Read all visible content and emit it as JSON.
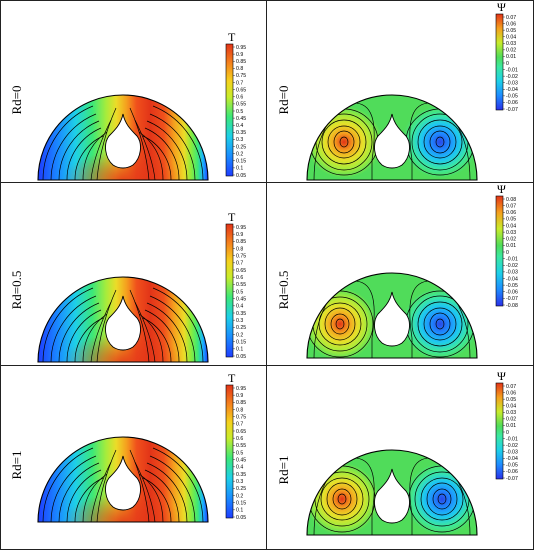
{
  "colors": {
    "temperature": [
      "#1e3cff",
      "#1a78ff",
      "#1ab4ff",
      "#1ee0d0",
      "#3ce878",
      "#8cec3c",
      "#d2ec2a",
      "#f5d21e",
      "#f5a01e",
      "#f56a1e",
      "#e23418"
    ],
    "stream_negative": [
      "#2a48e8",
      "#1e8cff",
      "#1ec8f0",
      "#3ce8a0"
    ],
    "stream_positive": [
      "#a6ec3c",
      "#e6e02a",
      "#f5a01e",
      "#e24a1c"
    ],
    "background_green": "#50dc5a"
  },
  "panels": [
    {
      "row_label": "Rd=0",
      "temperature": {
        "title": "T",
        "ticks": [
          "0.95",
          "0.9",
          "0.85",
          "0.8",
          "0.75",
          "0.7",
          "0.65",
          "0.6",
          "0.55",
          "0.5",
          "0.45",
          "0.4",
          "0.35",
          "0.3",
          "0.25",
          "0.2",
          "0.15",
          "0.1",
          "0.05"
        ]
      },
      "streamfunction": {
        "title": "Ψ",
        "ticks": [
          "0.07",
          "0.06",
          "0.05",
          "0.04",
          "0.03",
          "0.02",
          "0.01",
          "0",
          "-0.01",
          "-0.02",
          "-0.03",
          "-0.04",
          "-0.05",
          "-0.06",
          "-0.07"
        ]
      }
    },
    {
      "row_label": "Rd=0.5",
      "temperature": {
        "title": "T",
        "ticks": [
          "0.95",
          "0.9",
          "0.85",
          "0.8",
          "0.75",
          "0.7",
          "0.65",
          "0.6",
          "0.55",
          "0.5",
          "0.45",
          "0.4",
          "0.35",
          "0.3",
          "0.25",
          "0.2",
          "0.15",
          "0.1",
          "0.05"
        ]
      },
      "streamfunction": {
        "title": "Ψ",
        "ticks": [
          "0.08",
          "0.07",
          "0.06",
          "0.05",
          "0.04",
          "0.03",
          "0.02",
          "0.01",
          "0",
          "-0.01",
          "-0.02",
          "-0.03",
          "-0.04",
          "-0.05",
          "-0.06",
          "-0.07",
          "-0.08"
        ]
      }
    },
    {
      "row_label": "Rd=1",
      "temperature": {
        "title": "T",
        "ticks": [
          "0.95",
          "0.9",
          "0.85",
          "0.8",
          "0.75",
          "0.7",
          "0.65",
          "0.6",
          "0.55",
          "0.5",
          "0.45",
          "0.4",
          "0.35",
          "0.3",
          "0.25",
          "0.2",
          "0.15",
          "0.1",
          "0.05"
        ]
      },
      "streamfunction": {
        "title": "Ψ",
        "ticks": [
          "0.07",
          "0.06",
          "0.05",
          "0.04",
          "0.03",
          "0.02",
          "0.01",
          "0",
          "-0.01",
          "-0.02",
          "-0.03",
          "-0.04",
          "-0.05",
          "-0.06",
          "-0.07"
        ]
      }
    }
  ]
}
